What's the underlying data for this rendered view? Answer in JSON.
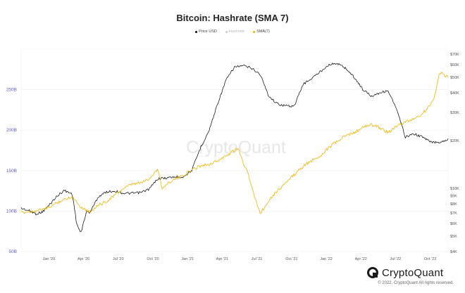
{
  "chart_data": {
    "type": "line",
    "title": "Bitcoin: Hashrate (SMA 7)",
    "x_labels": [
      "Jan '20",
      "Apr '20",
      "Jul '20",
      "Oct '20",
      "Jan '21",
      "Apr '21",
      "Jul '21",
      "Oct '21",
      "Jan '22",
      "Apr '22",
      "Jul '22",
      "Oct '22"
    ],
    "left_axis": {
      "ticks": [
        "50B",
        "100B",
        "150B",
        "200B",
        "250B"
      ],
      "values": [
        50,
        100,
        150,
        200,
        250
      ],
      "range": [
        50,
        300
      ],
      "color": "#5a5ad6"
    },
    "right_axis": {
      "ticks": [
        "$4K",
        "$5K",
        "$6K",
        "$7K",
        "$8K",
        "$9K",
        "$10K",
        "$20K",
        "$30K",
        "$40K",
        "$50K",
        "$60K",
        "$70K"
      ],
      "values": [
        4,
        5,
        6,
        7,
        8,
        9,
        10,
        20,
        30,
        40,
        50,
        60,
        70
      ],
      "scale": "log",
      "range": [
        4,
        75
      ]
    },
    "legend": [
      "Price USD",
      "Hashrate",
      "SMA(7)"
    ],
    "series": [
      {
        "name": "Price USD",
        "color": "#000000",
        "axis": "right",
        "x": [
          0,
          0.02,
          0.035,
          0.05,
          0.065,
          0.08,
          0.1,
          0.12,
          0.13,
          0.14,
          0.15,
          0.155,
          0.16,
          0.17,
          0.18,
          0.2,
          0.22,
          0.24,
          0.26,
          0.28,
          0.3,
          0.32,
          0.34,
          0.36,
          0.38,
          0.4,
          0.42,
          0.44,
          0.46,
          0.48,
          0.5,
          0.52,
          0.54,
          0.56,
          0.58,
          0.6,
          0.62,
          0.64,
          0.66,
          0.68,
          0.7,
          0.72,
          0.74,
          0.76,
          0.78,
          0.8,
          0.82,
          0.84,
          0.86,
          0.88,
          0.9,
          0.92,
          0.94,
          0.96,
          0.98,
          1.0
        ],
        "y": [
          7.5,
          7.2,
          6.9,
          7.1,
          7.8,
          8.7,
          9.7,
          9.2,
          6.0,
          5.2,
          6.7,
          7.2,
          7.0,
          7.8,
          8.8,
          9.5,
          9.6,
          9.3,
          9.3,
          9.4,
          9.9,
          11.5,
          11.6,
          11.8,
          11.8,
          13.0,
          18.0,
          23.0,
          34.0,
          48.0,
          58.0,
          59.0,
          57.0,
          52.0,
          38.0,
          34.0,
          33.0,
          33.0,
          45.0,
          49.0,
          54.0,
          60.0,
          61.0,
          57.0,
          50.0,
          42.0,
          38.0,
          40.0,
          41.0,
          31.0,
          21.0,
          22.0,
          21.0,
          19.5,
          19.5,
          20.3
        ]
      },
      {
        "name": "SMA(7)",
        "color": "#f0b400",
        "axis": "left",
        "x": [
          0,
          0.03,
          0.06,
          0.09,
          0.12,
          0.14,
          0.16,
          0.18,
          0.2,
          0.22,
          0.24,
          0.26,
          0.28,
          0.3,
          0.32,
          0.33,
          0.35,
          0.38,
          0.4,
          0.42,
          0.44,
          0.46,
          0.48,
          0.5,
          0.51,
          0.52,
          0.53,
          0.54,
          0.55,
          0.56,
          0.57,
          0.58,
          0.6,
          0.62,
          0.64,
          0.66,
          0.68,
          0.7,
          0.72,
          0.74,
          0.76,
          0.78,
          0.8,
          0.82,
          0.84,
          0.86,
          0.88,
          0.9,
          0.92,
          0.94,
          0.96,
          0.97,
          0.98,
          1.0
        ],
        "y": [
          98,
          100,
          103,
          112,
          118,
          105,
          99,
          107,
          112,
          120,
          128,
          133,
          135,
          140,
          152,
          128,
          137,
          144,
          151,
          156,
          158,
          162,
          168,
          175,
          176,
          160,
          150,
          130,
          112,
          98,
          104,
          114,
          125,
          135,
          145,
          155,
          162,
          168,
          178,
          186,
          193,
          197,
          203,
          207,
          203,
          197,
          205,
          210,
          214,
          220,
          232,
          245,
          272,
          265
        ]
      }
    ]
  },
  "watermark": "CryptoQuant",
  "brand": {
    "logo_text": "CryptoQuant",
    "copyright": "© 2022, CryptoQuant All rights reserved."
  }
}
